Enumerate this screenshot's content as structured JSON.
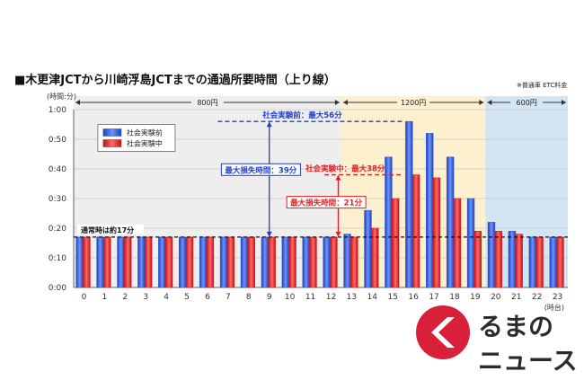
{
  "title": "■木更津JCTから川崎浮島JCTまでの通過所要時間（上り線）",
  "note": "※普通車 ETC料金",
  "chart_data": {
    "type": "bar",
    "ylabel": "(時間:分)",
    "xlabel": "(時台)",
    "ylim_minutes": [
      0,
      60
    ],
    "yticks": [
      "0:00",
      "0:10",
      "0:20",
      "0:30",
      "0:40",
      "0:50",
      "1:00"
    ],
    "categories": [
      "0",
      "1",
      "2",
      "3",
      "4",
      "5",
      "6",
      "7",
      "8",
      "9",
      "10",
      "11",
      "12",
      "13",
      "14",
      "15",
      "16",
      "17",
      "18",
      "19",
      "20",
      "21",
      "22",
      "23"
    ],
    "series": [
      {
        "name": "社会実験前",
        "color": "#2f5ad6",
        "values": [
          17,
          17,
          17,
          17,
          17,
          17,
          17,
          17,
          17,
          17,
          17,
          17,
          17,
          18,
          26,
          44,
          56,
          52,
          44,
          30,
          22,
          19,
          17,
          17
        ]
      },
      {
        "name": "社会実験中",
        "color": "#e02020",
        "values": [
          17,
          17,
          17,
          17,
          17,
          17,
          17,
          17,
          17,
          17,
          17,
          17,
          17,
          17,
          20,
          30,
          38,
          37,
          30,
          19,
          19,
          18,
          17,
          17
        ]
      }
    ],
    "legend_position": "top-left",
    "price_bands": [
      {
        "label": "800円",
        "from": 0,
        "to": 12,
        "color": "#eeeeee"
      },
      {
        "label": "1200円",
        "from": 13,
        "to": 19,
        "color": "#fdf0cf"
      },
      {
        "label": "600円",
        "from": 20,
        "to": 23,
        "color": "#d3e4f3"
      }
    ],
    "baseline": {
      "label": "通常時は約17分",
      "value": 17
    },
    "annotations": [
      {
        "text": "社会実験前：最大56分",
        "value": 56,
        "color": "#1f3fd0"
      },
      {
        "text": "社会実験中：最大38分",
        "value": 38,
        "color": "#e02020"
      },
      {
        "text": "最大損失時間：39分",
        "color": "#1f3fd0"
      },
      {
        "text": "最大損失時間：21分",
        "color": "#e02020"
      }
    ]
  },
  "watermark": {
    "line1": "るまの",
    "line2": "ニュース"
  }
}
